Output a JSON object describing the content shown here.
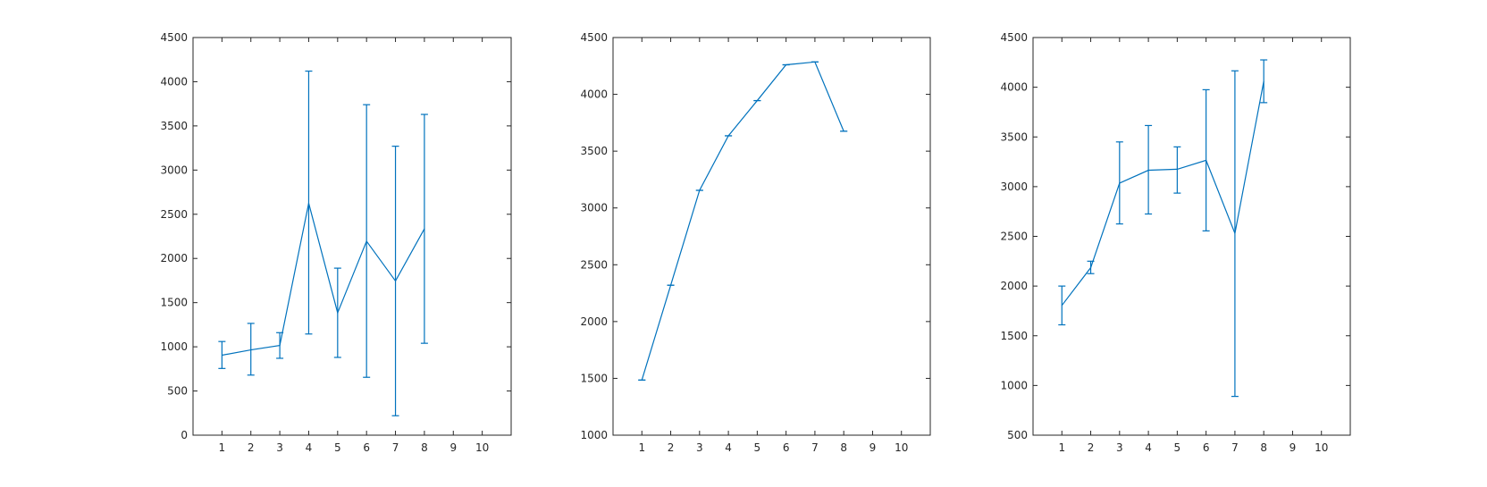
{
  "chart_data": [
    {
      "type": "line",
      "error_bars": true,
      "x": [
        1,
        2,
        3,
        4,
        5,
        6,
        7,
        8
      ],
      "series": [
        {
          "values": [
            905,
            965,
            1015,
            2625,
            1385,
            2195,
            1745,
            2335
          ],
          "err_low": [
            755,
            680,
            870,
            1145,
            880,
            655,
            220,
            1040
          ],
          "err_high": [
            1060,
            1265,
            1160,
            4120,
            1890,
            3740,
            3270,
            3630
          ],
          "color": "#0072bd"
        }
      ],
      "xlim": [
        0,
        11
      ],
      "ylim": [
        0,
        4500
      ],
      "xticks": [
        1,
        2,
        3,
        4,
        5,
        6,
        7,
        8,
        9,
        10
      ],
      "yticks": [
        0,
        500,
        1000,
        1500,
        2000,
        2500,
        3000,
        3500,
        4000,
        4500
      ],
      "title": "",
      "xlabel": "",
      "ylabel": "",
      "grid": false
    },
    {
      "type": "line",
      "error_bars": true,
      "x": [
        1,
        2,
        3,
        4,
        5,
        6,
        7,
        8
      ],
      "series": [
        {
          "values": [
            1485,
            2320,
            3155,
            3635,
            3945,
            4260,
            4285,
            3675
          ],
          "err_low": [
            1485,
            2320,
            3155,
            3635,
            3945,
            4260,
            4285,
            3675
          ],
          "err_high": [
            1485,
            2320,
            3155,
            3635,
            3945,
            4260,
            4285,
            3675
          ],
          "color": "#0072bd"
        }
      ],
      "xlim": [
        0,
        11
      ],
      "ylim": [
        1000,
        4500
      ],
      "xticks": [
        1,
        2,
        3,
        4,
        5,
        6,
        7,
        8,
        9,
        10
      ],
      "yticks": [
        1000,
        1500,
        2000,
        2500,
        3000,
        3500,
        4000,
        4500
      ],
      "title": "",
      "xlabel": "",
      "ylabel": "",
      "grid": false
    },
    {
      "type": "line",
      "error_bars": true,
      "x": [
        1,
        2,
        3,
        4,
        5,
        6,
        7,
        8
      ],
      "series": [
        {
          "values": [
            1805,
            2185,
            3035,
            3165,
            3175,
            3265,
            2530,
            4060
          ],
          "err_low": [
            1610,
            2125,
            2625,
            2725,
            2935,
            2555,
            890,
            3845
          ],
          "err_high": [
            2000,
            2250,
            3450,
            3615,
            3400,
            3975,
            4165,
            4275
          ],
          "color": "#0072bd"
        }
      ],
      "xlim": [
        0,
        11
      ],
      "ylim": [
        500,
        4500
      ],
      "xticks": [
        1,
        2,
        3,
        4,
        5,
        6,
        7,
        8,
        9,
        10
      ],
      "yticks": [
        500,
        1000,
        1500,
        2000,
        2500,
        3000,
        3500,
        4000,
        4500
      ],
      "title": "",
      "xlabel": "",
      "ylabel": "",
      "grid": false
    }
  ]
}
